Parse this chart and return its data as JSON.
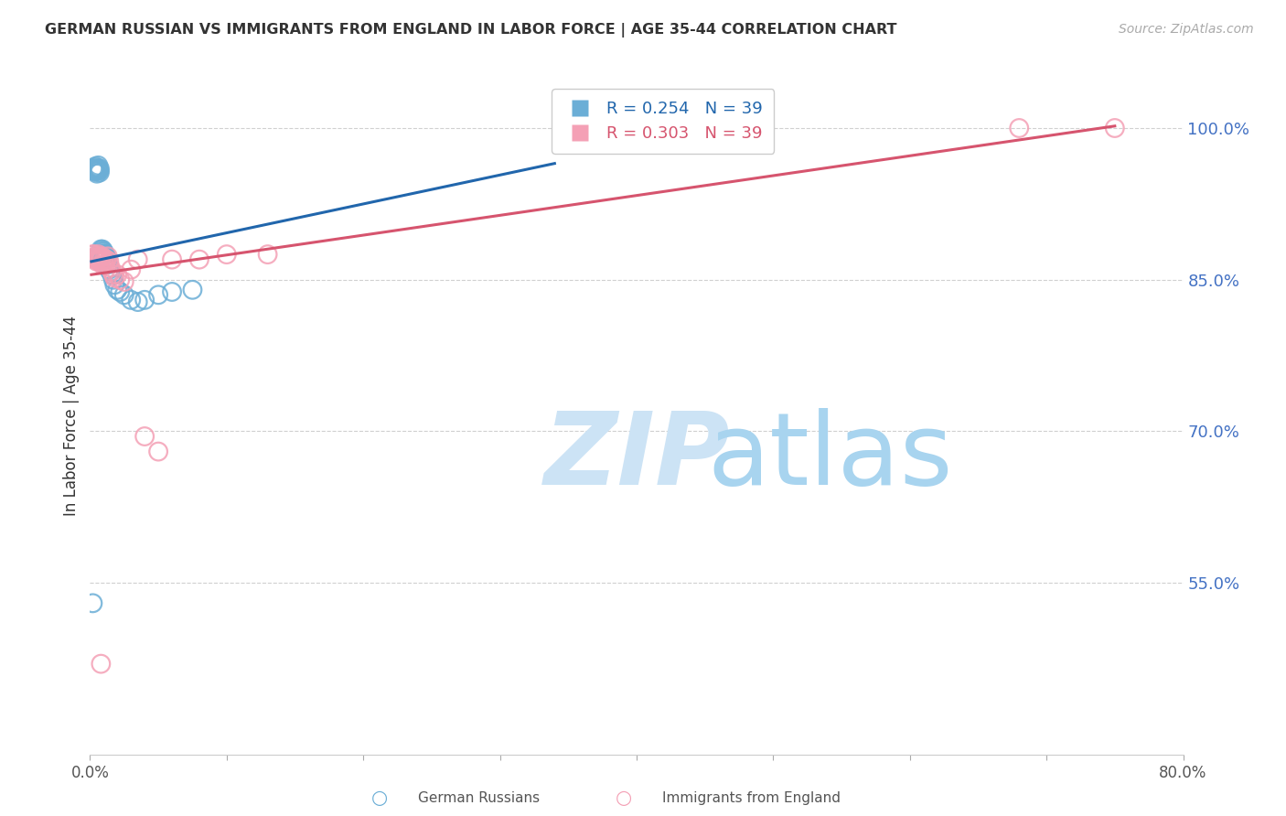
{
  "title": "GERMAN RUSSIAN VS IMMIGRANTS FROM ENGLAND IN LABOR FORCE | AGE 35-44 CORRELATION CHART",
  "source": "Source: ZipAtlas.com",
  "ylabel": "In Labor Force | Age 35-44",
  "x_min": 0.0,
  "x_max": 0.8,
  "y_min": 0.38,
  "y_max": 1.05,
  "right_yticks": [
    1.0,
    0.85,
    0.7,
    0.55
  ],
  "right_yticklabels": [
    "100.0%",
    "85.0%",
    "70.0%",
    "55.0%"
  ],
  "bottom_xticks": [
    0.0,
    0.1,
    0.2,
    0.3,
    0.4,
    0.5,
    0.6,
    0.7,
    0.8
  ],
  "bottom_xticklabels": [
    "0.0%",
    "",
    "",
    "",
    "",
    "",
    "",
    "",
    "80.0%"
  ],
  "legend_r_blue": "R = 0.254",
  "legend_n_blue": "N = 39",
  "legend_r_pink": "R = 0.303",
  "legend_n_pink": "N = 39",
  "legend_label_blue": "German Russians",
  "legend_label_pink": "Immigrants from England",
  "blue_color": "#6baed6",
  "pink_color": "#f4a0b5",
  "blue_line_color": "#2166ac",
  "pink_line_color": "#d6546e",
  "blue_scatter_x": [
    0.002,
    0.003,
    0.003,
    0.004,
    0.004,
    0.005,
    0.005,
    0.006,
    0.006,
    0.006,
    0.007,
    0.007,
    0.007,
    0.008,
    0.008,
    0.008,
    0.009,
    0.009,
    0.01,
    0.01,
    0.011,
    0.011,
    0.012,
    0.013,
    0.014,
    0.015,
    0.016,
    0.017,
    0.018,
    0.02,
    0.022,
    0.025,
    0.03,
    0.035,
    0.04,
    0.05,
    0.06,
    0.075,
    0.002
  ],
  "blue_scatter_y": [
    0.96,
    0.96,
    0.958,
    0.962,
    0.957,
    0.96,
    0.955,
    0.958,
    0.96,
    0.963,
    0.956,
    0.958,
    0.96,
    0.875,
    0.88,
    0.878,
    0.876,
    0.88,
    0.875,
    0.878,
    0.875,
    0.87,
    0.872,
    0.865,
    0.86,
    0.858,
    0.855,
    0.85,
    0.845,
    0.84,
    0.838,
    0.835,
    0.83,
    0.828,
    0.83,
    0.835,
    0.838,
    0.84,
    0.53
  ],
  "pink_scatter_x": [
    0.002,
    0.003,
    0.003,
    0.004,
    0.004,
    0.005,
    0.005,
    0.006,
    0.006,
    0.007,
    0.007,
    0.008,
    0.008,
    0.009,
    0.009,
    0.01,
    0.01,
    0.011,
    0.012,
    0.013,
    0.014,
    0.015,
    0.016,
    0.017,
    0.018,
    0.02,
    0.022,
    0.025,
    0.03,
    0.035,
    0.04,
    0.05,
    0.06,
    0.08,
    0.1,
    0.13,
    0.008,
    0.68,
    0.75
  ],
  "pink_scatter_y": [
    0.875,
    0.872,
    0.875,
    0.87,
    0.873,
    0.868,
    0.872,
    0.875,
    0.87,
    0.873,
    0.868,
    0.872,
    0.87,
    0.865,
    0.873,
    0.87,
    0.868,
    0.865,
    0.87,
    0.873,
    0.868,
    0.862,
    0.858,
    0.855,
    0.852,
    0.855,
    0.85,
    0.848,
    0.86,
    0.87,
    0.695,
    0.68,
    0.87,
    0.87,
    0.875,
    0.875,
    0.47,
    1.0,
    1.0
  ],
  "watermark_zip_color": "#cce3f5",
  "watermark_atlas_color": "#a8d4ef",
  "grid_color": "#d0d0d0",
  "background_color": "#ffffff"
}
